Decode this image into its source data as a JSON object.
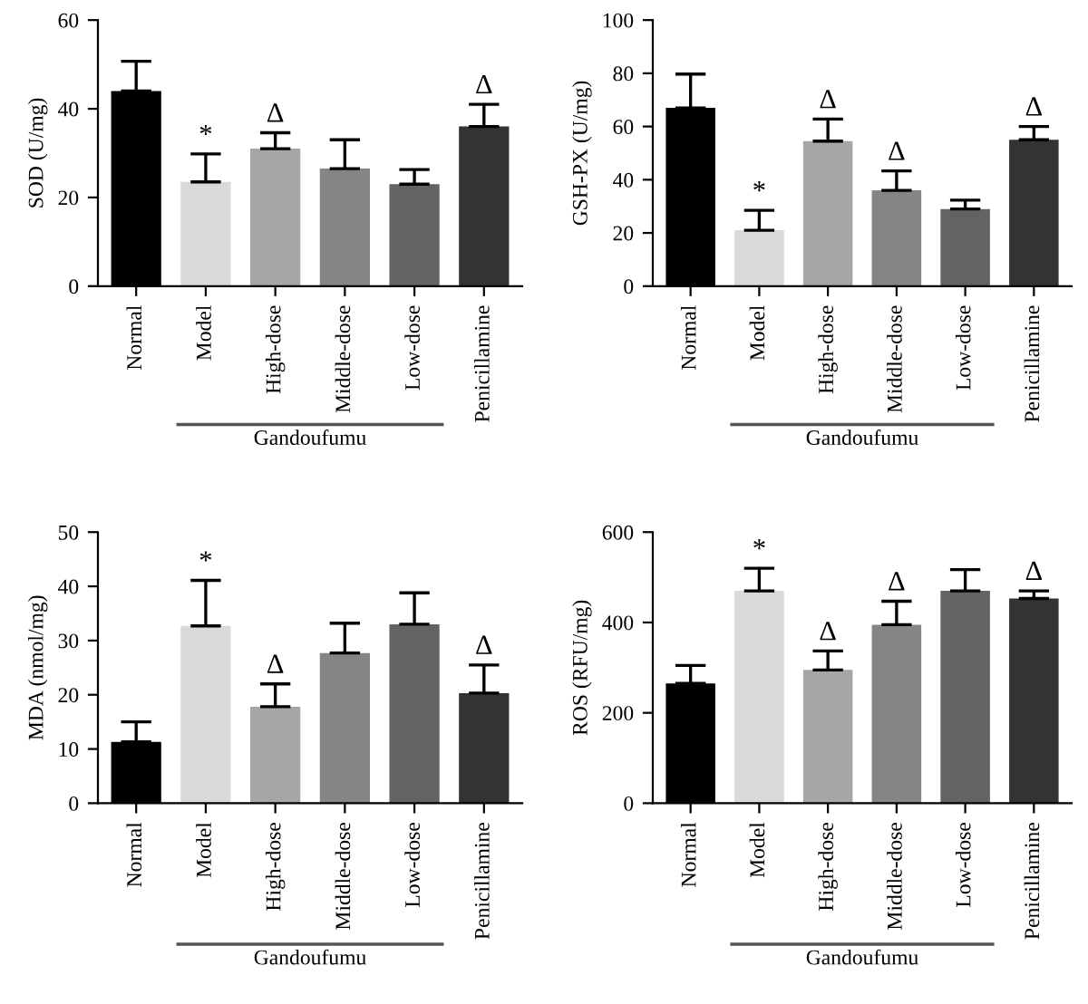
{
  "chart_data": [
    {
      "type": "bar",
      "ylabel": "SOD (U/mg)",
      "categories": [
        "Normal",
        "Model",
        "High-dose",
        "Middle-dose",
        "Low-dose",
        "Penicillamine"
      ],
      "values": [
        44,
        23.5,
        31,
        26.5,
        23,
        36
      ],
      "colors": [
        "#000000",
        "#d9d9d9",
        "#a6a6a6",
        "#858585",
        "#636363",
        "#333333"
      ],
      "errors": [
        [
          44,
          50.7
        ],
        [
          23.5,
          29.8
        ],
        [
          31,
          34.6
        ],
        [
          26.5,
          33
        ],
        [
          23,
          26.3
        ],
        [
          36,
          41
        ]
      ],
      "ylim": [
        0,
        60
      ],
      "yticks": [
        0,
        20,
        40,
        60
      ],
      "annotations": [
        {
          "text": "*",
          "x": "Model",
          "y": 29.8
        },
        {
          "text": "Δ",
          "x": "High-dose",
          "y": 34.6
        },
        {
          "text": "Δ",
          "x": "Penicillamine",
          "y": 41
        },
        "Gandoufumu"
      ]
    },
    {
      "type": "bar",
      "ylabel": "GSH-PX (U/mg)",
      "categories": [
        "Normal",
        "Model",
        "High-dose",
        "Middle-dose",
        "Low-dose",
        "Penicillamine"
      ],
      "values": [
        67,
        21,
        54.5,
        36,
        29,
        55
      ],
      "colors": [
        "#000000",
        "#d9d9d9",
        "#a6a6a6",
        "#858585",
        "#636363",
        "#333333"
      ],
      "errors": [
        [
          67,
          79.7
        ],
        [
          21,
          28.5
        ],
        [
          54.5,
          62.8
        ],
        [
          36,
          43.3
        ],
        [
          29,
          32.3
        ],
        [
          55,
          60
        ]
      ],
      "ylim": [
        0,
        100
      ],
      "yticks": [
        0,
        20,
        40,
        60,
        80,
        100
      ],
      "annotations": [
        {
          "text": "*",
          "x": "Model",
          "y": 28.5
        },
        {
          "text": "Δ",
          "x": "High-dose",
          "y": 62.8
        },
        {
          "text": "Δ",
          "x": "Middle-dose",
          "y": 43.3
        },
        {
          "text": "Δ",
          "x": "Penicillamine",
          "y": 60
        },
        "Gandoufumu"
      ]
    },
    {
      "type": "bar",
      "ylabel": "MDA (nmol/mg)",
      "categories": [
        "Normal",
        "Model",
        "High-dose",
        "Middle-dose",
        "Low-dose",
        "Penicillamine"
      ],
      "values": [
        11.3,
        32.7,
        17.8,
        27.7,
        33,
        20.3
      ],
      "colors": [
        "#000000",
        "#d9d9d9",
        "#a6a6a6",
        "#858585",
        "#636363",
        "#333333"
      ],
      "errors": [
        [
          11.3,
          15
        ],
        [
          32.7,
          41.1
        ],
        [
          17.8,
          22
        ],
        [
          27.7,
          33.2
        ],
        [
          33,
          38.8
        ],
        [
          20.3,
          25.5
        ]
      ],
      "ylim": [
        0,
        50
      ],
      "yticks": [
        0,
        10,
        20,
        30,
        40,
        50
      ],
      "annotations": [
        {
          "text": "*",
          "x": "Model",
          "y": 41.1
        },
        {
          "text": "Δ",
          "x": "High-dose",
          "y": 22
        },
        {
          "text": "Δ",
          "x": "Penicillamine",
          "y": 25.5
        },
        "Gandoufumu"
      ]
    },
    {
      "type": "bar",
      "ylabel": "ROS (RFU/mg)",
      "categories": [
        "Normal",
        "Model",
        "High-dose",
        "Middle-dose",
        "Low-dose",
        "Penicillamine"
      ],
      "values": [
        265,
        470,
        295,
        395,
        470,
        453
      ],
      "colors": [
        "#000000",
        "#d9d9d9",
        "#a6a6a6",
        "#858585",
        "#636363",
        "#333333"
      ],
      "errors": [
        [
          265,
          305
        ],
        [
          470,
          520
        ],
        [
          295,
          337
        ],
        [
          395,
          447
        ],
        [
          470,
          517
        ],
        [
          453,
          470
        ]
      ],
      "ylim": [
        0,
        600
      ],
      "yticks": [
        0,
        200,
        400,
        600
      ],
      "annotations": [
        {
          "text": "*",
          "x": "Model",
          "y": 520
        },
        {
          "text": "Δ",
          "x": "High-dose",
          "y": 337
        },
        {
          "text": "Δ",
          "x": "Middle-dose",
          "y": 447
        },
        {
          "text": "Δ",
          "x": "Penicillamine",
          "y": 470
        },
        "Gandoufumu"
      ]
    }
  ]
}
